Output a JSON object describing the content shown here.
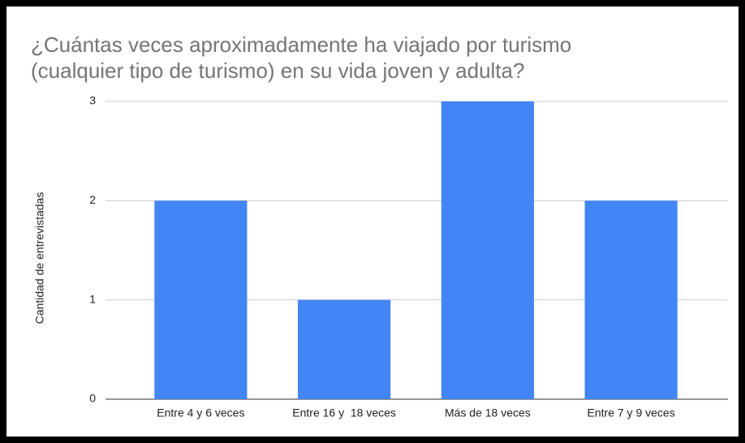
{
  "chart_data": {
    "type": "bar",
    "title": [
      "¿Cuántas veces aproximadamente ha viajado por turismo",
      "(cualquier tipo de turismo) en su vida joven y adulta?"
    ],
    "y_label": "Cantidad de entrevistadas",
    "categories": [
      "Entre 4 y 6 veces",
      "Entre 16 y  18 veces",
      "Más de 18 veces",
      "Entre 7 y 9 veces"
    ],
    "values": [
      2,
      1,
      3,
      2
    ],
    "color": "#4285f4",
    "ylim": [
      0,
      3
    ],
    "yticks": [
      0,
      1,
      2,
      3
    ],
    "grid": true
  }
}
